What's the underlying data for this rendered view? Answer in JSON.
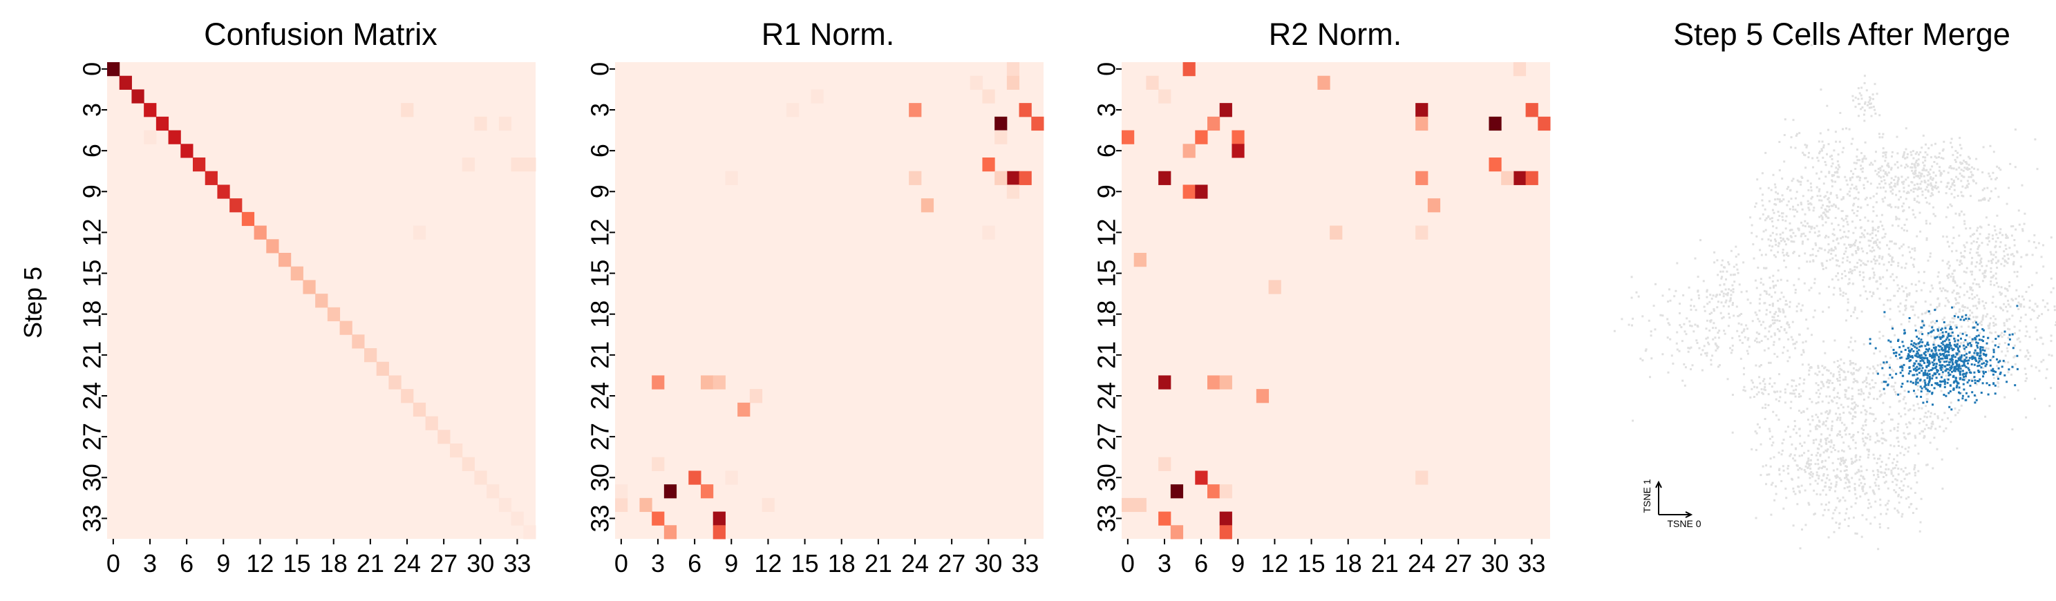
{
  "chart_data": [
    {
      "type": "heatmap",
      "title": "Confusion Matrix",
      "ylabel": "Step 5",
      "xlabel": "",
      "size": 35,
      "tick_labels": [
        "0",
        "3",
        "6",
        "9",
        "12",
        "15",
        "18",
        "21",
        "24",
        "27",
        "30",
        "33"
      ],
      "color_scale": "Reds",
      "cells": [
        [
          0,
          0,
          1.0
        ],
        [
          1,
          1,
          0.8
        ],
        [
          2,
          2,
          0.8
        ],
        [
          3,
          3,
          0.75
        ],
        [
          4,
          4,
          0.75
        ],
        [
          5,
          5,
          0.75
        ],
        [
          6,
          6,
          0.75
        ],
        [
          7,
          7,
          0.7
        ],
        [
          8,
          8,
          0.7
        ],
        [
          9,
          9,
          0.7
        ],
        [
          10,
          10,
          0.65
        ],
        [
          11,
          11,
          0.5
        ],
        [
          12,
          12,
          0.35
        ],
        [
          13,
          13,
          0.3
        ],
        [
          14,
          14,
          0.28
        ],
        [
          15,
          15,
          0.25
        ],
        [
          16,
          16,
          0.25
        ],
        [
          17,
          17,
          0.22
        ],
        [
          18,
          18,
          0.2
        ],
        [
          19,
          19,
          0.2
        ],
        [
          20,
          20,
          0.18
        ],
        [
          21,
          21,
          0.15
        ],
        [
          22,
          22,
          0.15
        ],
        [
          23,
          23,
          0.13
        ],
        [
          24,
          24,
          0.12
        ],
        [
          25,
          25,
          0.12
        ],
        [
          26,
          26,
          0.1
        ],
        [
          27,
          27,
          0.1
        ],
        [
          28,
          28,
          0.08
        ],
        [
          29,
          29,
          0.08
        ],
        [
          30,
          30,
          0.07
        ],
        [
          31,
          31,
          0.06
        ],
        [
          32,
          32,
          0.05
        ],
        [
          33,
          33,
          0.05
        ],
        [
          34,
          34,
          0.04
        ],
        [
          3,
          24,
          0.08
        ],
        [
          4,
          30,
          0.07
        ],
        [
          4,
          32,
          0.06
        ],
        [
          7,
          29,
          0.06
        ],
        [
          7,
          33,
          0.07
        ],
        [
          7,
          34,
          0.07
        ],
        [
          12,
          25,
          0.05
        ],
        [
          5,
          3,
          0.05
        ]
      ]
    },
    {
      "type": "heatmap",
      "title": "R1 Norm.",
      "xlabel": "",
      "ylabel": "",
      "size": 35,
      "tick_labels": [
        "0",
        "3",
        "6",
        "9",
        "12",
        "15",
        "18",
        "21",
        "24",
        "27",
        "30",
        "33"
      ],
      "color_scale": "Reds",
      "cells": [
        [
          0,
          32,
          0.1
        ],
        [
          1,
          32,
          0.15
        ],
        [
          1,
          29,
          0.06
        ],
        [
          2,
          30,
          0.08
        ],
        [
          3,
          24,
          0.4
        ],
        [
          3,
          33,
          0.55
        ],
        [
          4,
          31,
          1.0
        ],
        [
          4,
          34,
          0.55
        ],
        [
          5,
          31,
          0.08
        ],
        [
          7,
          30,
          0.5
        ],
        [
          8,
          24,
          0.15
        ],
        [
          8,
          32,
          0.85
        ],
        [
          8,
          33,
          0.55
        ],
        [
          8,
          31,
          0.15
        ],
        [
          9,
          32,
          0.08
        ],
        [
          10,
          25,
          0.25
        ],
        [
          2,
          16,
          0.05
        ],
        [
          3,
          14,
          0.05
        ],
        [
          8,
          9,
          0.05
        ],
        [
          12,
          30,
          0.05
        ],
        [
          23,
          3,
          0.4
        ],
        [
          23,
          7,
          0.25
        ],
        [
          23,
          8,
          0.2
        ],
        [
          24,
          11,
          0.1
        ],
        [
          25,
          10,
          0.35
        ],
        [
          29,
          3,
          0.08
        ],
        [
          30,
          6,
          0.55
        ],
        [
          31,
          4,
          1.0
        ],
        [
          31,
          7,
          0.45
        ],
        [
          32,
          2,
          0.25
        ],
        [
          32,
          0,
          0.1
        ],
        [
          33,
          3,
          0.5
        ],
        [
          33,
          8,
          0.85
        ],
        [
          34,
          4,
          0.35
        ],
        [
          34,
          8,
          0.55
        ],
        [
          30,
          9,
          0.05
        ],
        [
          31,
          0,
          0.05
        ],
        [
          32,
          12,
          0.06
        ]
      ]
    },
    {
      "type": "heatmap",
      "title": "R2 Norm.",
      "xlabel": "",
      "ylabel": "",
      "size": 35,
      "tick_labels": [
        "0",
        "3",
        "6",
        "9",
        "12",
        "15",
        "18",
        "21",
        "24",
        "27",
        "30",
        "33"
      ],
      "color_scale": "Reds",
      "cells": [
        [
          0,
          5,
          0.55
        ],
        [
          0,
          32,
          0.1
        ],
        [
          1,
          16,
          0.3
        ],
        [
          2,
          3,
          0.08
        ],
        [
          3,
          8,
          0.85
        ],
        [
          3,
          24,
          0.85
        ],
        [
          3,
          33,
          0.55
        ],
        [
          4,
          7,
          0.4
        ],
        [
          4,
          24,
          0.3
        ],
        [
          4,
          30,
          1.0
        ],
        [
          4,
          34,
          0.55
        ],
        [
          5,
          0,
          0.5
        ],
        [
          5,
          6,
          0.5
        ],
        [
          5,
          9,
          0.5
        ],
        [
          6,
          5,
          0.3
        ],
        [
          6,
          9,
          0.8
        ],
        [
          7,
          30,
          0.5
        ],
        [
          8,
          3,
          0.85
        ],
        [
          8,
          24,
          0.4
        ],
        [
          8,
          32,
          0.85
        ],
        [
          8,
          33,
          0.55
        ],
        [
          8,
          31,
          0.15
        ],
        [
          9,
          5,
          0.5
        ],
        [
          9,
          6,
          0.85
        ],
        [
          10,
          25,
          0.3
        ],
        [
          12,
          17,
          0.15
        ],
        [
          14,
          1,
          0.25
        ],
        [
          16,
          12,
          0.15
        ],
        [
          23,
          3,
          0.85
        ],
        [
          23,
          7,
          0.35
        ],
        [
          23,
          8,
          0.25
        ],
        [
          24,
          11,
          0.35
        ],
        [
          29,
          3,
          0.1
        ],
        [
          30,
          6,
          0.7
        ],
        [
          30,
          24,
          0.1
        ],
        [
          31,
          4,
          1.0
        ],
        [
          31,
          7,
          0.45
        ],
        [
          31,
          8,
          0.1
        ],
        [
          32,
          0,
          0.15
        ],
        [
          32,
          1,
          0.15
        ],
        [
          33,
          3,
          0.5
        ],
        [
          33,
          8,
          0.85
        ],
        [
          34,
          4,
          0.35
        ],
        [
          34,
          8,
          0.55
        ],
        [
          1,
          2,
          0.1
        ],
        [
          12,
          24,
          0.1
        ]
      ]
    },
    {
      "type": "scatter",
      "title": "Step 5 Cells After Merge",
      "xlabel": "TSNE 0",
      "ylabel": "TSNE 1",
      "background_color": "#e0e0e0",
      "highlight_color": "#1f77b4"
    }
  ]
}
